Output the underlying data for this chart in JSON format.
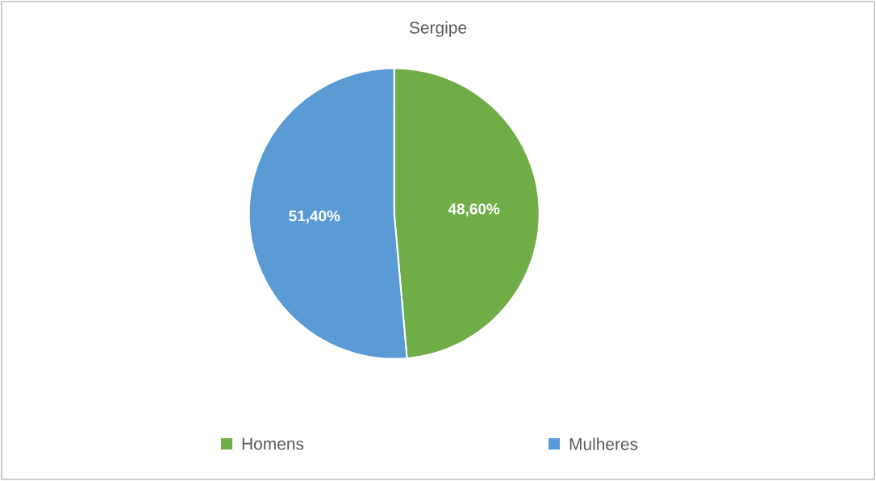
{
  "chart_data": {
    "type": "pie",
    "title": "Sergipe",
    "categories": [
      "Homens",
      "Mulheres"
    ],
    "values": [
      48.6,
      51.4
    ],
    "colors": [
      "#70ad47",
      "#5b9bd5"
    ],
    "value_labels": [
      "48,60%",
      "51,40%"
    ],
    "legend": "bottom"
  }
}
